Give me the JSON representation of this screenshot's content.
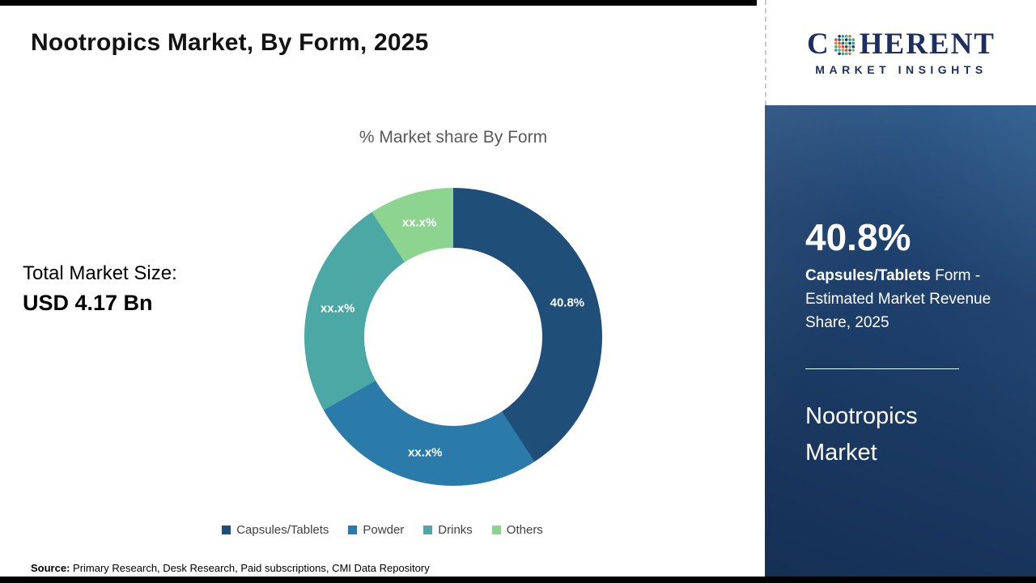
{
  "header": {
    "title": "Nootropics Market, By Form, 2025"
  },
  "logo": {
    "part1": "C",
    "part2": "HERENT",
    "subline": "MARKET INSIGHTS",
    "text_color": "#1e2f5f",
    "globe_colors": [
      "#1d3a6e",
      "#2a9d8f",
      "#43aa8b",
      "#e07a3f",
      "#d94f30",
      "#27567b",
      "#7fb069"
    ]
  },
  "chart_data": {
    "type": "pie",
    "donut": true,
    "title": "% Market share By Form",
    "categories": [
      "Capsules/Tablets",
      "Powder",
      "Drinks",
      "Others"
    ],
    "values": [
      40.8,
      26.0,
      24.0,
      9.2
    ],
    "display_labels": [
      "40.8%",
      "xx.x%",
      "xx.x%",
      "xx.x%"
    ],
    "colors": [
      "#1f4e79",
      "#2a7ba9",
      "#4ba8a4",
      "#8ed491"
    ],
    "legend_position": "bottom",
    "note": "only Capsules/Tablets share (40.8%) shown; other slice values masked as xx.x% and estimated from arc angles"
  },
  "left_panel": {
    "total_label": "Total Market Size:",
    "total_value": "USD 4.17 Bn"
  },
  "sidebar": {
    "stat_value": "40.8%",
    "desc_bold": " Capsules/Tablets",
    "desc_rest": " Form - Estimated Market Revenue Share, 2025",
    "market_name": "Nootropics Market",
    "background_color": "#1d3f6a"
  },
  "footer": {
    "source_label": "Source:",
    "source_text": " Primary Research, Desk Research, Paid subscriptions, CMI Data Repository"
  }
}
